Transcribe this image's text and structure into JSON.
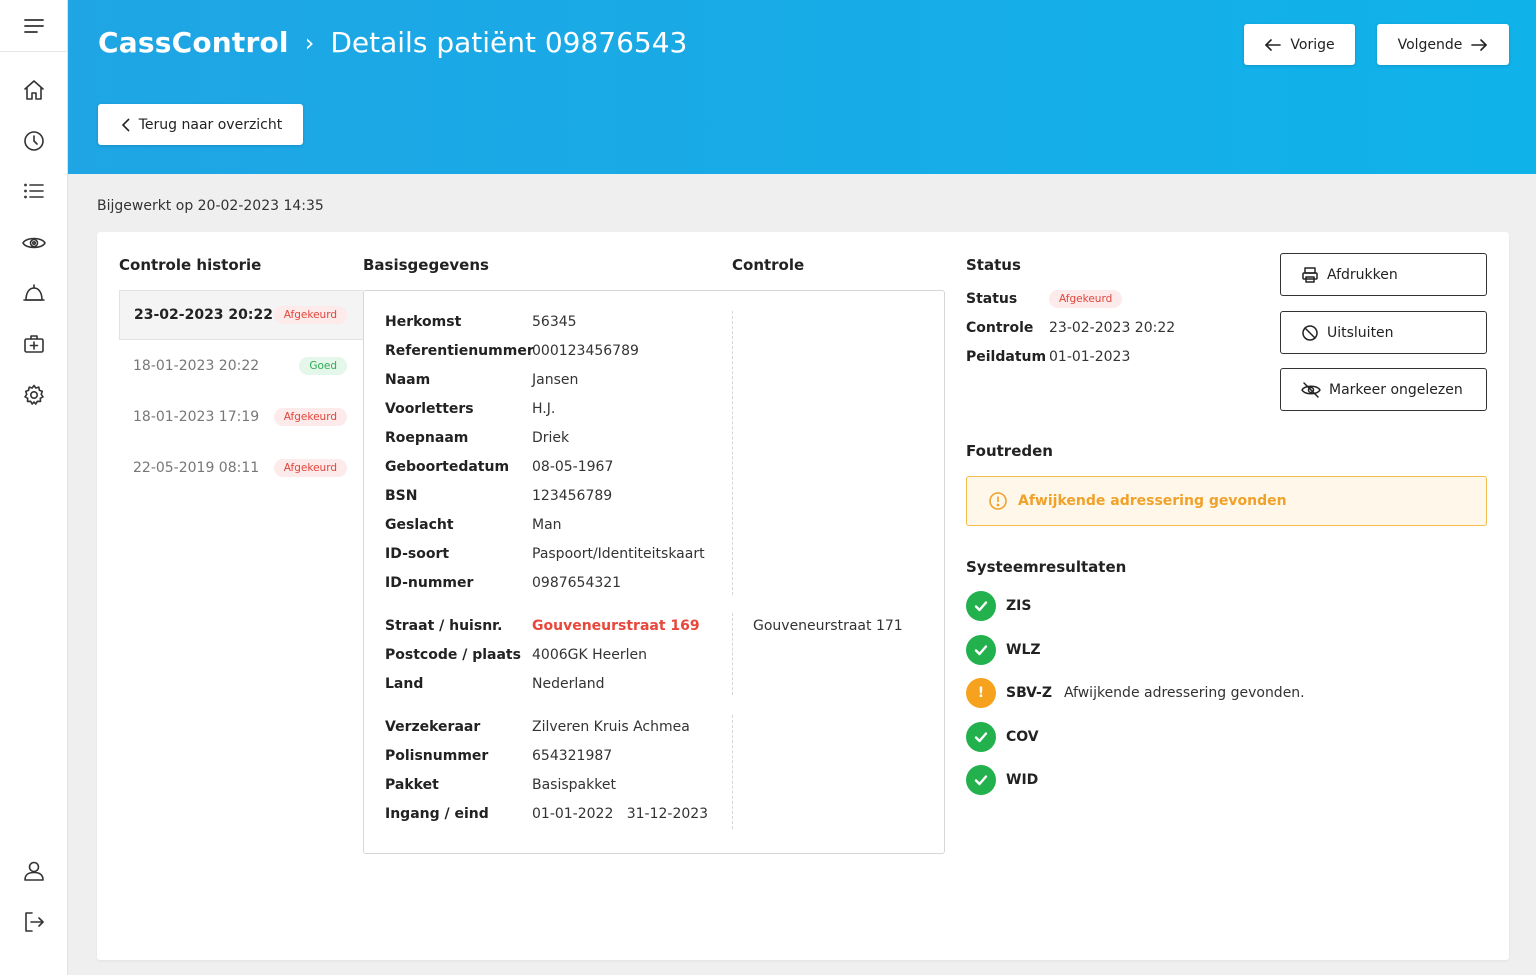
{
  "header": {
    "app_name": "CassControl",
    "separator": "›",
    "page_title": "Details patiënt 09876543",
    "prev_label": "Vorige",
    "next_label": "Volgende",
    "back_label": "Terug naar overzicht"
  },
  "updated_text": "Bijgewerkt op 20-02-2023 14:35",
  "columns": {
    "history": "Controle historie",
    "basis": "Basisgegevens",
    "controle": "Controle",
    "status": "Status"
  },
  "history": [
    {
      "date": "23-02-2023 20:22",
      "badge": "Afgekeurd",
      "type": "red"
    },
    {
      "date": "18-01-2023 20:22",
      "badge": "Goed",
      "type": "green"
    },
    {
      "date": "18-01-2023 17:19",
      "badge": "Afgekeurd",
      "type": "red"
    },
    {
      "date": "22-05-2019 08:11",
      "badge": "Afgekeurd",
      "type": "red"
    }
  ],
  "basis": {
    "herkomst": {
      "label": "Herkomst",
      "value": "56345"
    },
    "referentie": {
      "label": "Referentienummer",
      "value": "000123456789"
    },
    "naam": {
      "label": "Naam",
      "value": "Jansen"
    },
    "voorletters": {
      "label": "Voorletters",
      "value": "H.J."
    },
    "roepnaam": {
      "label": "Roepnaam",
      "value": "Driek"
    },
    "geboortedatum": {
      "label": "Geboortedatum",
      "value": "08-05-1967"
    },
    "bsn": {
      "label": "BSN",
      "value": "123456789"
    },
    "geslacht": {
      "label": "Geslacht",
      "value": "Man"
    },
    "idsoort": {
      "label": "ID-soort",
      "value": "Paspoort/Identiteitskaart"
    },
    "idnummer": {
      "label": "ID-nummer",
      "value": "0987654321"
    },
    "straat": {
      "label": "Straat / huisnr.",
      "value": "Gouveneurstraat 169",
      "controle": "Gouveneurstraat 171"
    },
    "postcode": {
      "label": "Postcode / plaats",
      "value": "4006GK Heerlen"
    },
    "land": {
      "label": "Land",
      "value": "Nederland"
    },
    "verzekeraar": {
      "label": "Verzekeraar",
      "value": "Zilveren Kruis Achmea"
    },
    "polis": {
      "label": "Polisnummer",
      "value": "654321987"
    },
    "pakket": {
      "label": "Pakket",
      "value": "Basispakket"
    },
    "ingang": {
      "label": "Ingang / eind",
      "value": "01-01-2022   31-12-2023"
    }
  },
  "status": {
    "status_label": "Status",
    "status_badge": "Afgekeurd",
    "controle_label": "Controle",
    "controle_value": "23-02-2023 20:22",
    "peildatum_label": "Peildatum",
    "peildatum_value": "01-01-2023"
  },
  "actions": {
    "print": "Afdrukken",
    "exclude": "Uitsluiten",
    "mark_unread": "Markeer ongelezen"
  },
  "foutreden": {
    "title": "Foutreden",
    "message": "Afwijkende adressering gevonden"
  },
  "systeem": {
    "title": "Systeemresultaten",
    "items": [
      {
        "code": "ZIS",
        "status": "ok",
        "message": ""
      },
      {
        "code": "WLZ",
        "status": "ok",
        "message": ""
      },
      {
        "code": "SBV-Z",
        "status": "warn",
        "message": "Afwijkende adressering gevonden."
      },
      {
        "code": "COV",
        "status": "ok",
        "message": ""
      },
      {
        "code": "WID",
        "status": "ok",
        "message": ""
      }
    ]
  },
  "colors": {
    "header_blue": "#10b2ea",
    "error_red": "#e8473b",
    "success_green": "#22b14c",
    "warning_orange": "#f6a21e"
  }
}
